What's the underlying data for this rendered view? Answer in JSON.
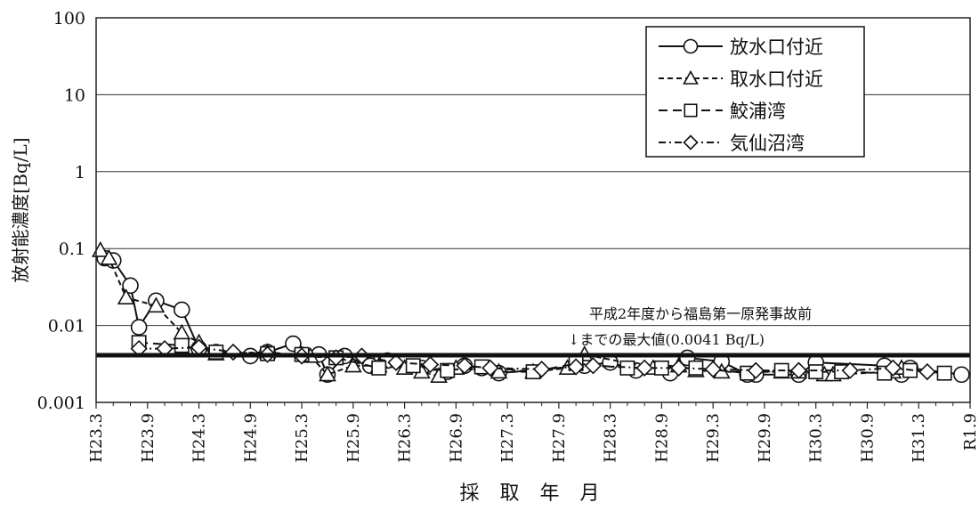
{
  "chart_data": {
    "type": "line",
    "y_scale": "log",
    "ylabel": "放射能濃度[Bq/L]",
    "xlabel": "採 取 年 月",
    "ylim": [
      0.001,
      100
    ],
    "y_ticks": [
      "100",
      "10",
      "1",
      "0.1",
      "0.01",
      "0.001"
    ],
    "y_tick_values": [
      100,
      10,
      1,
      0.1,
      0.01,
      0.001
    ],
    "x_ticks": [
      "H23.3",
      "H23.9",
      "H24.3",
      "H24.9",
      "H25.3",
      "H25.9",
      "H26.3",
      "H26.9",
      "H27.3",
      "H27.9",
      "H28.3",
      "H28.9",
      "H29.3",
      "H29.9",
      "H30.3",
      "H30.9",
      "H31.3",
      "R1.9"
    ],
    "x_tick_months": [
      0,
      6,
      12,
      18,
      24,
      30,
      36,
      42,
      48,
      54,
      60,
      66,
      72,
      78,
      84,
      90,
      96,
      102
    ],
    "grid": "horizontal",
    "legend_position": "top-right",
    "reference_line": {
      "value": 0.0041,
      "label_line1": "平成2年度から福島第一原発事故前",
      "label_line2": "↓までの最大値(0.0041 Bq/L)"
    },
    "series": [
      {
        "name": "放水口付近",
        "marker": "circle",
        "dash": "",
        "points": [
          [
            1,
            0.075
          ],
          [
            2,
            0.07
          ],
          [
            4,
            0.033
          ],
          [
            5,
            0.0095
          ],
          [
            7,
            0.021
          ],
          [
            10,
            0.016
          ],
          [
            12,
            0.005
          ],
          [
            14,
            0.0045
          ],
          [
            18,
            0.004
          ],
          [
            20,
            0.0045
          ],
          [
            23,
            0.0058
          ],
          [
            26,
            0.0042
          ],
          [
            27,
            0.0023
          ],
          [
            29,
            0.004
          ],
          [
            32,
            0.003
          ],
          [
            34,
            0.0035
          ],
          [
            38,
            0.0028
          ],
          [
            41,
            0.0025
          ],
          [
            43,
            0.003
          ],
          [
            45,
            0.0028
          ],
          [
            47,
            0.0024
          ],
          [
            57,
            0.003
          ],
          [
            60,
            0.0033
          ],
          [
            63,
            0.0026
          ],
          [
            67,
            0.0024
          ],
          [
            69,
            0.0038
          ],
          [
            73,
            0.0034
          ],
          [
            76,
            0.0023
          ],
          [
            77,
            0.0023
          ],
          [
            82,
            0.0023
          ],
          [
            84,
            0.0033
          ],
          [
            92,
            0.003
          ],
          [
            94,
            0.0023
          ],
          [
            95,
            0.0028
          ],
          [
            101,
            0.0023
          ]
        ]
      },
      {
        "name": "取水口付近",
        "marker": "triangle",
        "dash": "6,4",
        "points": [
          [
            0.5,
            0.095
          ],
          [
            1.5,
            0.075
          ],
          [
            3.5,
            0.023
          ],
          [
            7,
            0.018
          ],
          [
            10,
            0.008
          ],
          [
            12,
            0.006
          ],
          [
            14,
            0.0043
          ],
          [
            20,
            0.0045
          ],
          [
            25,
            0.004
          ],
          [
            27,
            0.0023
          ],
          [
            30,
            0.003
          ],
          [
            33,
            0.003
          ],
          [
            36,
            0.0028
          ],
          [
            38,
            0.0025
          ],
          [
            40,
            0.0022
          ],
          [
            42,
            0.0028
          ],
          [
            47,
            0.0025
          ],
          [
            51,
            0.0025
          ],
          [
            55,
            0.0028
          ],
          [
            57,
            0.0042
          ],
          [
            65,
            0.0028
          ],
          [
            68,
            0.003
          ],
          [
            70,
            0.0026
          ],
          [
            73,
            0.0025
          ],
          [
            80,
            0.0025
          ],
          [
            82,
            0.0025
          ],
          [
            85,
            0.0023
          ],
          [
            86,
            0.0023
          ],
          [
            93,
            0.0025
          ],
          [
            94,
            0.0028
          ]
        ]
      },
      {
        "name": "鮫浦湾",
        "marker": "square",
        "dash": "10,6",
        "points": [
          [
            5,
            0.006
          ],
          [
            10,
            0.0055
          ],
          [
            14,
            0.0045
          ],
          [
            20,
            0.0043
          ],
          [
            24,
            0.0042
          ],
          [
            28,
            0.0038
          ],
          [
            33,
            0.0028
          ],
          [
            37,
            0.003
          ],
          [
            41,
            0.0026
          ],
          [
            45,
            0.0029
          ],
          [
            51,
            0.0025
          ],
          [
            56,
            0.0032
          ],
          [
            62,
            0.0028
          ],
          [
            66,
            0.0028
          ],
          [
            70,
            0.0028
          ],
          [
            76,
            0.0024
          ],
          [
            80,
            0.0026
          ],
          [
            84,
            0.0025
          ],
          [
            87,
            0.0025
          ],
          [
            92,
            0.0024
          ],
          [
            95,
            0.0026
          ],
          [
            99,
            0.0024
          ]
        ]
      },
      {
        "name": "気仙沼湾",
        "marker": "diamond",
        "dash": "8,4,2,4",
        "points": [
          [
            5,
            0.005
          ],
          [
            8,
            0.005
          ],
          [
            12,
            0.0052
          ],
          [
            16,
            0.0045
          ],
          [
            20,
            0.0042
          ],
          [
            24,
            0.004
          ],
          [
            28,
            0.0038
          ],
          [
            31,
            0.004
          ],
          [
            35,
            0.0033
          ],
          [
            39,
            0.0031
          ],
          [
            43,
            0.003
          ],
          [
            46,
            0.0028
          ],
          [
            52,
            0.0027
          ],
          [
            56,
            0.0029
          ],
          [
            58,
            0.003
          ],
          [
            64,
            0.0028
          ],
          [
            68,
            0.0028
          ],
          [
            72,
            0.0027
          ],
          [
            77,
            0.0026
          ],
          [
            82,
            0.0026
          ],
          [
            88,
            0.0026
          ],
          [
            93,
            0.0028
          ],
          [
            97,
            0.0025
          ]
        ]
      }
    ]
  }
}
